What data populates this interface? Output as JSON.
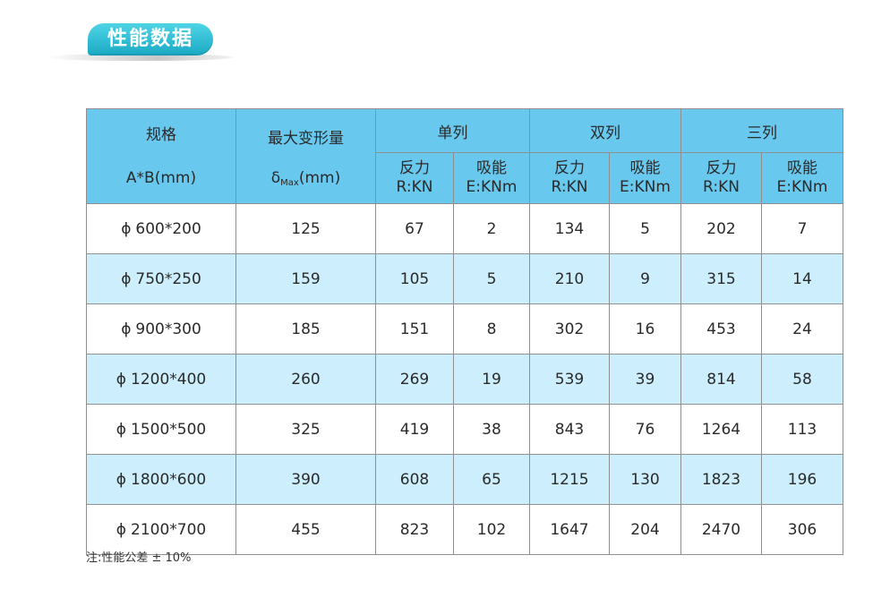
{
  "title": "性能数据",
  "table": {
    "header": {
      "spec_line1": "规格",
      "spec_line2": "A*B(mm)",
      "deform_label": "最大变形量",
      "deform_symbol": "δ",
      "deform_sub": "Max",
      "deform_unit": "(mm)",
      "groups": [
        "单列",
        "双列",
        "三列"
      ],
      "force_label": "反力",
      "force_unit": "R:KN",
      "energy_label": "吸能",
      "energy_unit": "E:KNm"
    },
    "rows": [
      {
        "phi": "ϕ",
        "spec": "600*200",
        "deform": "125",
        "r1": "67",
        "e1": "2",
        "r2": "134",
        "e2": "5",
        "r3": "202",
        "e3": "7"
      },
      {
        "phi": "ϕ",
        "spec": "750*250",
        "deform": "159",
        "r1": "105",
        "e1": "5",
        "r2": "210",
        "e2": "9",
        "r3": "315",
        "e3": "14"
      },
      {
        "phi": "ϕ",
        "spec": "900*300",
        "deform": "185",
        "r1": "151",
        "e1": "8",
        "r2": "302",
        "e2": "16",
        "r3": "453",
        "e3": "24"
      },
      {
        "phi": "ϕ",
        "spec": "1200*400",
        "deform": "260",
        "r1": "269",
        "e1": "19",
        "r2": "539",
        "e2": "39",
        "r3": "814",
        "e3": "58"
      },
      {
        "phi": "ϕ",
        "spec": "1500*500",
        "deform": "325",
        "r1": "419",
        "e1": "38",
        "r2": "843",
        "e2": "76",
        "r3": "1264",
        "e3": "113"
      },
      {
        "phi": "ϕ",
        "spec": "1800*600",
        "deform": "390",
        "r1": "608",
        "e1": "65",
        "r2": "1215",
        "e2": "130",
        "r3": "1823",
        "e3": "196"
      },
      {
        "phi": "ϕ",
        "spec": "2100*700",
        "deform": "455",
        "r1": "823",
        "e1": "102",
        "r2": "1647",
        "e2": "204",
        "r3": "2470",
        "e3": "306"
      }
    ]
  },
  "note": "注:性能公差 ± 10%",
  "colors": {
    "header_bg": "#69c8ee",
    "alt_row_bg": "#cdeefc",
    "title_pill": "#1aa9c3"
  }
}
